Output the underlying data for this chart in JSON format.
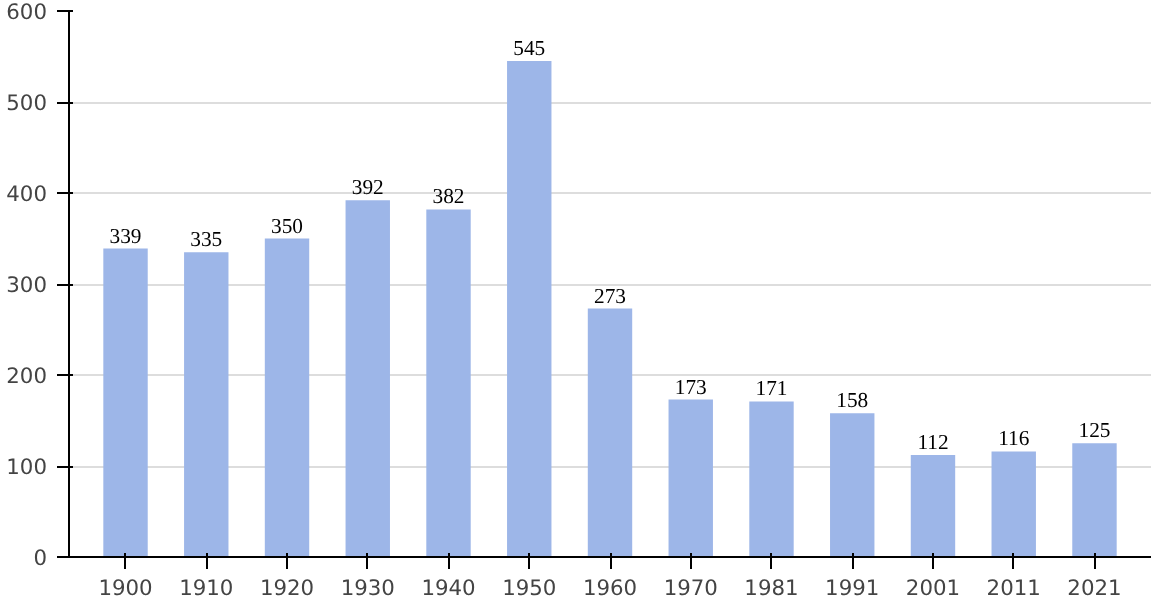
{
  "chart_data": {
    "type": "bar",
    "categories": [
      "1900",
      "1910",
      "1920",
      "1930",
      "1940",
      "1950",
      "1960",
      "1970",
      "1981",
      "1991",
      "2001",
      "2011",
      "2021"
    ],
    "values": [
      339,
      335,
      350,
      392,
      382,
      545,
      273,
      173,
      171,
      158,
      112,
      116,
      125
    ],
    "color": "#9db6e8",
    "ylim": [
      0,
      600
    ],
    "yticks": [
      0,
      100,
      200,
      300,
      400,
      500,
      600
    ],
    "grid": "y",
    "data_labels": true
  }
}
